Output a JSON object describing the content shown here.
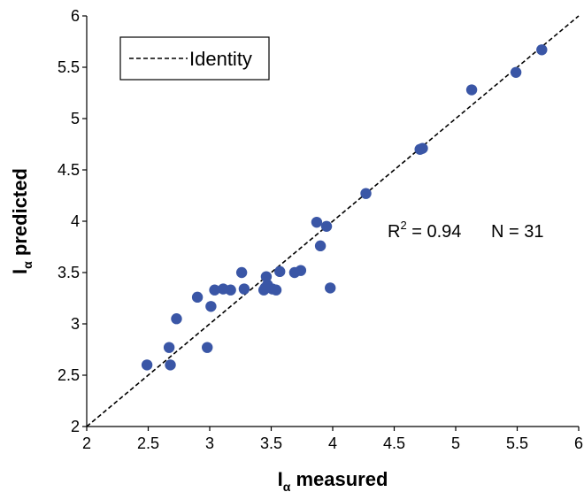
{
  "chart_data": {
    "type": "scatter",
    "xlabel": {
      "main": "I",
      "sub": "α",
      "rest": " measured"
    },
    "ylabel": {
      "main": "I",
      "sub": "α",
      "rest": " predicted"
    },
    "xlim": [
      2,
      6
    ],
    "ylim": [
      2,
      6
    ],
    "x_ticks": [
      "2",
      "2.5",
      "3",
      "3.5",
      "4",
      "4.5",
      "5",
      "5.5",
      "6"
    ],
    "y_ticks": [
      "2",
      "2.5",
      "3",
      "3.5",
      "4",
      "4.5",
      "5",
      "5.5",
      "6"
    ],
    "legend": {
      "label": "Identity",
      "placement": "top-left"
    },
    "reference_line": {
      "name": "Identity",
      "style": "dashed",
      "from": [
        2,
        2
      ],
      "to": [
        6,
        6
      ]
    },
    "annotation": {
      "r_prefix": "R",
      "r_sup": "2",
      "r_value": " = 0.94",
      "n_text": "N = 31"
    },
    "grid": false,
    "marker_color": "#3a56a6",
    "points": [
      {
        "x": 2.49,
        "y": 2.6
      },
      {
        "x": 2.67,
        "y": 2.77
      },
      {
        "x": 2.68,
        "y": 2.6
      },
      {
        "x": 2.73,
        "y": 3.05
      },
      {
        "x": 2.9,
        "y": 3.26
      },
      {
        "x": 2.98,
        "y": 2.77
      },
      {
        "x": 3.01,
        "y": 3.17
      },
      {
        "x": 3.04,
        "y": 3.33
      },
      {
        "x": 3.11,
        "y": 3.34
      },
      {
        "x": 3.17,
        "y": 3.33
      },
      {
        "x": 3.26,
        "y": 3.5
      },
      {
        "x": 3.28,
        "y": 3.34
      },
      {
        "x": 3.44,
        "y": 3.33
      },
      {
        "x": 3.46,
        "y": 3.46
      },
      {
        "x": 3.47,
        "y": 3.38
      },
      {
        "x": 3.51,
        "y": 3.34
      },
      {
        "x": 3.54,
        "y": 3.33
      },
      {
        "x": 3.57,
        "y": 3.51
      },
      {
        "x": 3.69,
        "y": 3.5
      },
      {
        "x": 3.74,
        "y": 3.52
      },
      {
        "x": 3.87,
        "y": 3.99
      },
      {
        "x": 3.9,
        "y": 3.76
      },
      {
        "x": 3.95,
        "y": 3.95
      },
      {
        "x": 3.98,
        "y": 3.35
      },
      {
        "x": 4.27,
        "y": 4.27
      },
      {
        "x": 4.71,
        "y": 4.7
      },
      {
        "x": 4.73,
        "y": 4.71
      },
      {
        "x": 5.13,
        "y": 5.28
      },
      {
        "x": 5.49,
        "y": 5.45
      },
      {
        "x": 5.7,
        "y": 5.67
      },
      {
        "x": 3.45,
        "y": 3.35
      }
    ]
  }
}
